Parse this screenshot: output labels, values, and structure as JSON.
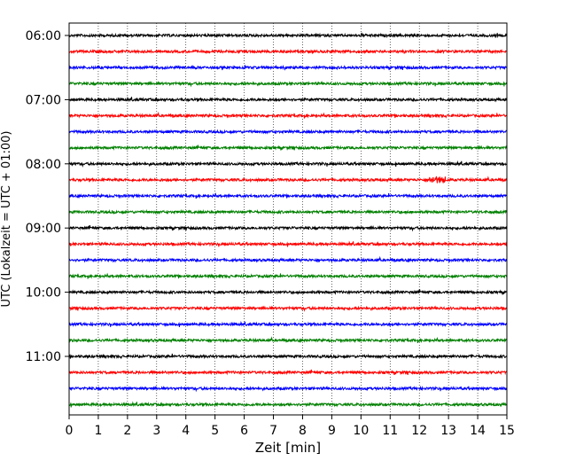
{
  "chart_data": {
    "type": "line",
    "title": "",
    "xlabel": "Zeit  [min]",
    "ylabel": "UTC (Lokalzeit = UTC + 01:00)",
    "xlim": [
      0,
      15
    ],
    "xticks": [
      "0",
      "1",
      "2",
      "3",
      "4",
      "5",
      "6",
      "7",
      "8",
      "9",
      "10",
      "11",
      "12",
      "13",
      "14",
      "15"
    ],
    "ytick_labels": [
      "06:00",
      "07:00",
      "08:00",
      "09:00",
      "10:00",
      "11:00"
    ],
    "grid": "vertical dotted",
    "trace_colors": [
      "#000000",
      "#ff0000",
      "#0000ff",
      "#008000"
    ],
    "trace_start_times": [
      "06:00",
      "06:15",
      "06:30",
      "06:45",
      "07:00",
      "07:15",
      "07:30",
      "07:45",
      "08:00",
      "08:15",
      "08:30",
      "08:45",
      "09:00",
      "09:15",
      "09:30",
      "09:45",
      "10:00",
      "10:15",
      "10:30",
      "10:45",
      "11:00",
      "11:15",
      "11:30",
      "11:45"
    ],
    "trace_duration_min": 15
  }
}
